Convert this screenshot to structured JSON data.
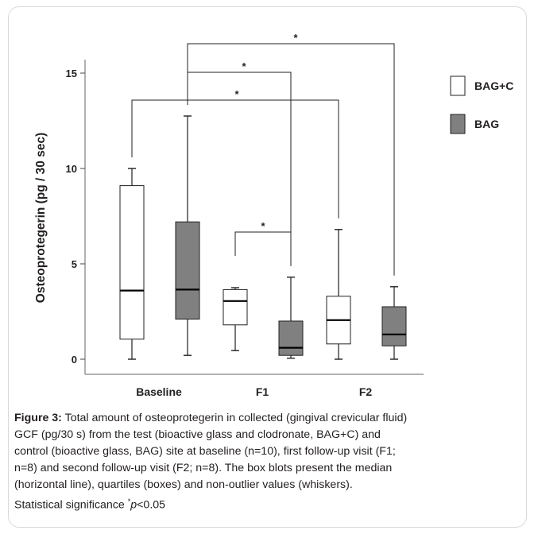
{
  "chart_data": {
    "type": "boxplot",
    "ylabel": "Osteoprotegerin (pg / 30 sec)",
    "xlabel": "",
    "ylim": [
      0,
      15
    ],
    "yticks": [
      0,
      5,
      10,
      15
    ],
    "categories": [
      "Baseline",
      "F1",
      "F2"
    ],
    "grid": false,
    "legend_position": "top-right",
    "series": [
      {
        "name": "BAG+C",
        "color": "#ffffff",
        "boxes": [
          {
            "category": "Baseline",
            "min": 0.0,
            "q1": 1.05,
            "median": 3.6,
            "q3": 9.1,
            "max": 10.0
          },
          {
            "category": "F1",
            "min": 0.45,
            "q1": 1.8,
            "median": 3.05,
            "q3": 3.65,
            "max": 3.75
          },
          {
            "category": "F2",
            "min": 0.0,
            "q1": 0.8,
            "median": 2.05,
            "q3": 3.3,
            "max": 6.8
          }
        ]
      },
      {
        "name": "BAG",
        "color": "#808080",
        "boxes": [
          {
            "category": "Baseline",
            "min": 0.2,
            "q1": 2.1,
            "median": 3.65,
            "q3": 7.2,
            "max": 12.75
          },
          {
            "category": "F1",
            "min": 0.05,
            "q1": 0.2,
            "median": 0.6,
            "q3": 2.0,
            "max": 4.3
          },
          {
            "category": "F2",
            "min": 0.0,
            "q1": 0.7,
            "median": 1.3,
            "q3": 2.75,
            "max": 3.8
          }
        ]
      }
    ],
    "significance": [
      {
        "from": {
          "category": "Baseline",
          "series": "BAG"
        },
        "to": {
          "category": "F2",
          "series": "BAG"
        },
        "label": "*"
      },
      {
        "from": {
          "category": "Baseline",
          "series": "BAG"
        },
        "to": {
          "category": "F1",
          "series": "BAG"
        },
        "label": "*"
      },
      {
        "from": {
          "category": "Baseline",
          "series": "BAG+C"
        },
        "to": {
          "category": "F2",
          "series": "BAG+C"
        },
        "label": "*"
      },
      {
        "from": {
          "category": "F1",
          "series": "BAG+C"
        },
        "to": {
          "category": "F1",
          "series": "BAG"
        },
        "label": "*"
      }
    ]
  },
  "caption": {
    "figure_label": "Figure 3:",
    "lines": [
      " Total amount of osteoprotegerin in collected (gingival crevicular fluid)",
      "GCF (pg/30 s) from the test (bioactive glass and clodronate, BAG+C) and",
      "control (bioactive glass, BAG) site at baseline (n=10), first follow-up visit (F1;",
      "n=8) and second follow-up visit (F2; n=8). The box blots present the median",
      "(horizontal line), quartiles (boxes) and non-outlier values (whiskers)."
    ],
    "significance_prefix": "Statistical significance ",
    "significance_star": "*",
    "significance_p": "p",
    "significance_suffix": "<0.05"
  }
}
